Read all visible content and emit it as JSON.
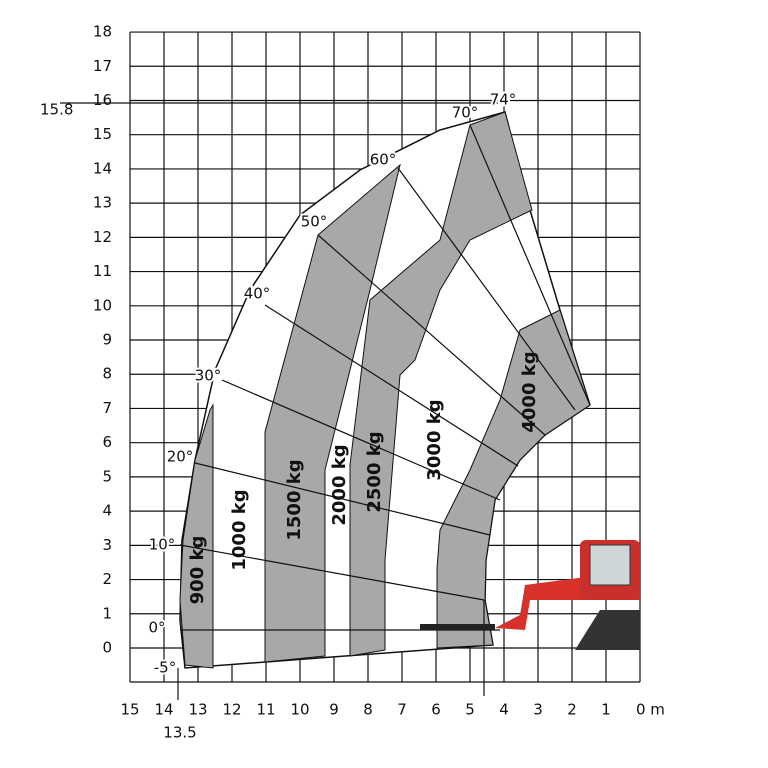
{
  "y_axis": {
    "labels": [
      "0",
      "1",
      "2",
      "3",
      "4",
      "5",
      "6",
      "7",
      "8",
      "9",
      "10",
      "11",
      "12",
      "13",
      "14",
      "15",
      "16",
      "17",
      "18"
    ],
    "marker": "15.8"
  },
  "x_axis": {
    "labels": [
      "15",
      "14",
      "13",
      "12",
      "11",
      "10",
      "9",
      "8",
      "7",
      "6",
      "5",
      "4",
      "3",
      "2",
      "1",
      "0 m"
    ],
    "marker": "13.5"
  },
  "angles": [
    "-5°",
    "0°",
    "10°",
    "20°",
    "30°",
    "40°",
    "50°",
    "60°",
    "70°",
    "74°"
  ],
  "loads": [
    "900 kg",
    "1000 kg",
    "1500 kg",
    "2000 kg",
    "2500 kg",
    "3000 kg",
    "4000 kg"
  ]
}
